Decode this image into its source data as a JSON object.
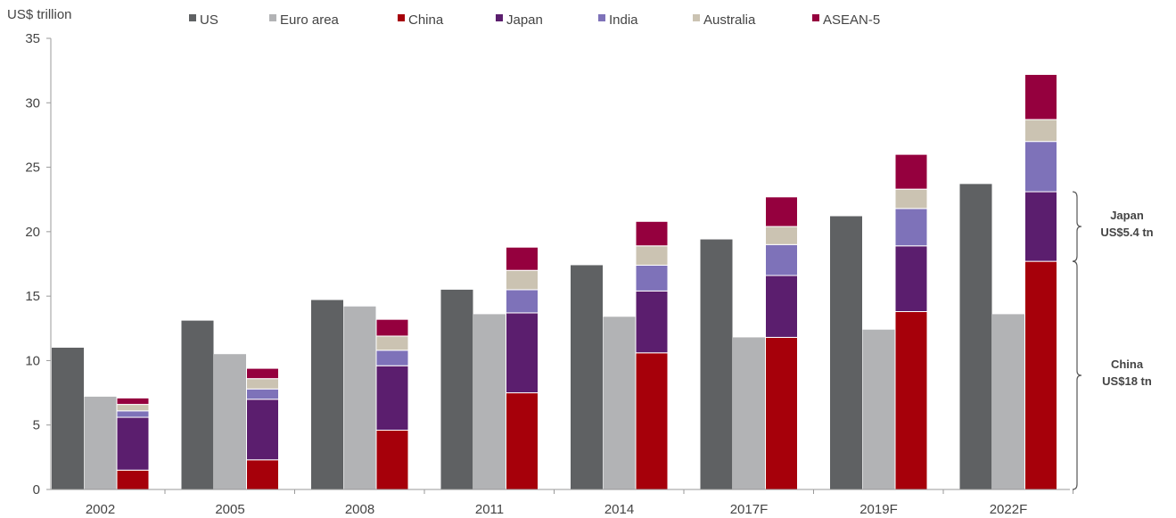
{
  "chart_data": {
    "type": "bar",
    "ylabel": "US$ trillion",
    "ylim": [
      0,
      35
    ],
    "yticks": [
      "0",
      "5",
      "10",
      "15",
      "20",
      "25",
      "30",
      "35"
    ],
    "categories": [
      "2002",
      "2005",
      "2008",
      "2011",
      "2014",
      "2017F",
      "2019F",
      "2022F"
    ],
    "series": [
      {
        "name": "US",
        "color": "#5f6163",
        "values": [
          11.0,
          13.1,
          14.7,
          15.5,
          17.4,
          19.4,
          21.2,
          23.7
        ]
      },
      {
        "name": "Euro area",
        "color": "#b2b3b5",
        "values": [
          7.2,
          10.5,
          14.2,
          13.6,
          13.4,
          11.8,
          12.4,
          13.6
        ]
      }
    ],
    "stacked_series": [
      {
        "name": "China",
        "color": "#a6000a",
        "values": [
          1.5,
          2.3,
          4.6,
          7.5,
          10.6,
          11.8,
          13.8,
          17.7
        ]
      },
      {
        "name": "Japan",
        "color": "#5b1e6e",
        "values": [
          4.1,
          4.7,
          5.0,
          6.2,
          4.8,
          4.8,
          5.1,
          5.4
        ]
      },
      {
        "name": "India",
        "color": "#7e72b9",
        "values": [
          0.5,
          0.8,
          1.2,
          1.8,
          2.0,
          2.4,
          2.9,
          3.9
        ]
      },
      {
        "name": "Australia",
        "color": "#cbc3b2",
        "values": [
          0.5,
          0.8,
          1.1,
          1.5,
          1.5,
          1.4,
          1.5,
          1.7
        ]
      },
      {
        "name": "ASEAN-5",
        "color": "#95003e",
        "values": [
          0.5,
          0.8,
          1.3,
          1.8,
          1.9,
          2.3,
          2.7,
          3.5
        ]
      }
    ],
    "legend": [
      "US",
      "Euro area",
      "China",
      "Japan",
      "India",
      "Australia",
      "ASEAN-5"
    ],
    "legend_position": "top",
    "grid": false,
    "annotations": [
      {
        "lines": [
          "Japan",
          "US$5.4 tn"
        ],
        "range": [
          17.7,
          23.1
        ]
      },
      {
        "lines": [
          "China",
          "US$18 tn"
        ],
        "range": [
          0,
          17.7
        ]
      }
    ]
  }
}
